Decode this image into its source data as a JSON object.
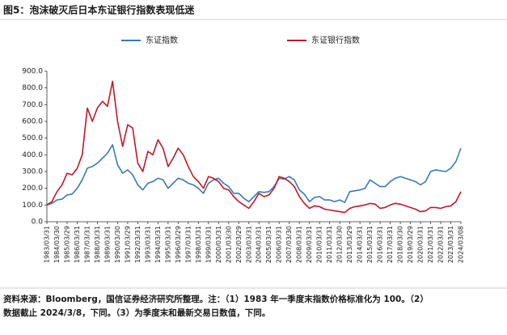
{
  "chart_data": {
    "type": "line",
    "title": "图5：泡沫破灭后日本东证银行指数表现低迷",
    "notes": [
      "资料来源：Bloomberg，国信证券经济研究所整理。注：（1）1983 年一季度末指数价格标准化为 100。（2）",
      "数据截止 2024/3/8，下同。（3）为季度末和最新交易日数值，下同。"
    ],
    "categories": [
      "1983/03/31",
      null,
      "1984/03/30",
      null,
      "1985/03/29",
      null,
      "1986/03/31",
      null,
      "1987/03/31",
      null,
      "1988/03/31",
      null,
      "1989/03/31",
      null,
      "1990/03/30",
      null,
      "1991/03/29",
      null,
      "1992/03/31",
      null,
      "1993/03/31",
      null,
      "1994/03/31",
      null,
      "1995/03/31",
      null,
      "1996/03/29",
      null,
      "1997/03/31",
      null,
      "1998/03/31",
      null,
      "1999/03/31",
      null,
      "2000/03/31",
      null,
      "2001/03/30",
      null,
      "2002/03/29",
      null,
      "2003/03/31",
      null,
      "2004/03/31",
      null,
      "2005/03/31",
      null,
      "2006/03/31",
      null,
      "2007/03/30",
      null,
      "2008/03/31",
      null,
      "2009/03/31",
      null,
      "2010/03/31",
      null,
      "2011/03/31",
      null,
      "2012/03/30",
      null,
      "2013/03/29",
      null,
      "2014/03/31",
      null,
      "2015/03/31",
      null,
      "2016/03/31",
      null,
      "2017/03/31",
      null,
      "2018/03/30",
      null,
      "2019/03/29",
      null,
      "2020/03/31",
      null,
      "2021/03/31",
      null,
      "2022/03/31",
      null,
      "2023/03/31",
      null,
      "2024/03/08"
    ],
    "series": [
      {
        "name": "东证指数",
        "color": "#3a7bb0",
        "values": [
          100,
          110,
          130,
          135,
          160,
          165,
          200,
          250,
          320,
          330,
          350,
          380,
          410,
          460,
          340,
          290,
          310,
          280,
          220,
          190,
          230,
          240,
          260,
          250,
          200,
          230,
          260,
          250,
          230,
          220,
          200,
          170,
          230,
          250,
          260,
          230,
          210,
          170,
          170,
          140,
          120,
          150,
          180,
          175,
          180,
          210,
          260,
          255,
          270,
          250,
          190,
          165,
          120,
          145,
          150,
          130,
          130,
          120,
          130,
          115,
          180,
          185,
          190,
          200,
          250,
          230,
          210,
          210,
          240,
          260,
          270,
          260,
          250,
          240,
          220,
          240,
          300,
          310,
          305,
          300,
          320,
          360,
          440
        ]
      },
      {
        "name": "东证银行指数",
        "color": "#c0182a",
        "values": [
          100,
          120,
          180,
          220,
          290,
          280,
          320,
          400,
          680,
          600,
          680,
          720,
          690,
          840,
          600,
          450,
          580,
          560,
          350,
          300,
          420,
          400,
          490,
          440,
          330,
          380,
          440,
          400,
          330,
          270,
          240,
          200,
          270,
          260,
          240,
          200,
          190,
          150,
          120,
          100,
          80,
          120,
          170,
          150,
          160,
          200,
          270,
          260,
          240,
          210,
          150,
          110,
          80,
          95,
          90,
          75,
          70,
          65,
          60,
          55,
          80,
          90,
          95,
          100,
          110,
          105,
          80,
          85,
          100,
          110,
          105,
          95,
          85,
          75,
          60,
          65,
          85,
          85,
          80,
          90,
          95,
          120,
          180
        ]
      }
    ],
    "ylim": [
      0,
      900
    ],
    "yticks": [
      {
        "value": 0,
        "label": "0.0"
      },
      {
        "value": 100,
        "label": "100.0"
      },
      {
        "value": 200,
        "label": "200.0"
      },
      {
        "value": 300,
        "label": "300.0"
      },
      {
        "value": 400,
        "label": "400.0"
      },
      {
        "value": 500,
        "label": "500.0"
      },
      {
        "value": 600,
        "label": "600.0"
      },
      {
        "value": 700,
        "label": "700.0"
      },
      {
        "value": 800,
        "label": "800.0"
      },
      {
        "value": 900,
        "label": "900.0"
      }
    ],
    "grid": false
  }
}
